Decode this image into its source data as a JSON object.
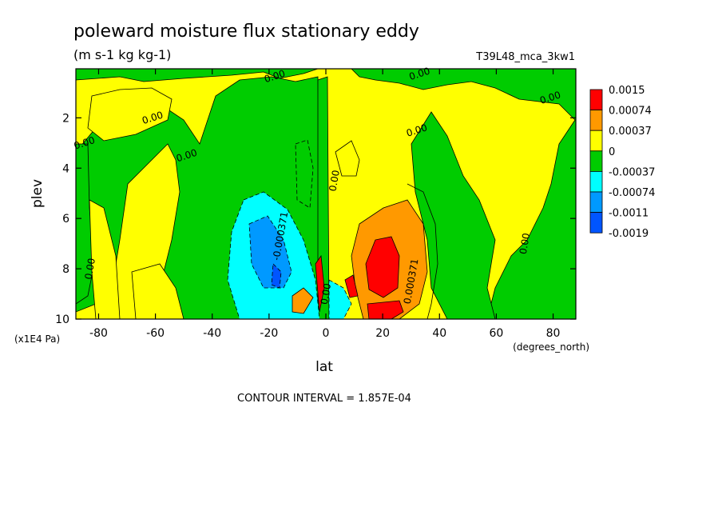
{
  "chart_data": {
    "type": "heatmap",
    "title": "poleward moisture flux stationary eddy",
    "units": "(m s-1 kg kg-1)",
    "run_label": "T39L48_mca_3kw1",
    "xlabel": "lat",
    "xunits": "(degrees_north)",
    "ylabel": "plev",
    "yunits": "(x1E4 Pa)",
    "xlim": [
      -88,
      88
    ],
    "ylim": [
      10,
      0.05
    ],
    "x_ticks": [
      -80,
      -60,
      -40,
      -20,
      0,
      20,
      40,
      60,
      80
    ],
    "x_tick_labels": [
      "-80",
      "-60",
      "-40",
      "-20",
      "0",
      "20",
      "40",
      "60",
      "80"
    ],
    "y_ticks": [
      2,
      4,
      6,
      8,
      10
    ],
    "y_tick_labels": [
      "2",
      "4",
      "6",
      "8",
      "10"
    ],
    "contour_interval": "CONTOUR INTERVAL = 1.857E-04",
    "colorbar": {
      "labels": [
        "0.0015",
        "0.00074",
        "0.00037",
        "0",
        "-0.00037",
        "-0.00074",
        "-0.0011",
        "-0.0019"
      ],
      "colors": [
        "#ff0000",
        "#ff9900",
        "#ffff00",
        "#00cc00",
        "#00ffff",
        "#0099ff",
        "#0055ff"
      ]
    },
    "contour_labels": [
      {
        "text": "0.00",
        "x": -85,
        "y": 3.0
      },
      {
        "text": "0.00",
        "x": -61,
        "y": 2.0
      },
      {
        "text": "0.00",
        "x": -49,
        "y": 3.5
      },
      {
        "text": "0.00",
        "x": -18,
        "y": 0.35
      },
      {
        "text": "0.00",
        "x": 3,
        "y": 4.5
      },
      {
        "text": "0.00",
        "x": 32,
        "y": 2.5
      },
      {
        "text": "0.00",
        "x": 33,
        "y": 0.25
      },
      {
        "text": "0.00",
        "x": 79,
        "y": 1.2
      },
      {
        "text": "0.00",
        "x": 70,
        "y": 7.0
      },
      {
        "text": "0.00",
        "x": -83,
        "y": 8.0
      },
      {
        "text": "-0.000371",
        "x": -16,
        "y": 6.7
      },
      {
        "text": "0.000371",
        "x": 30,
        "y": 8.5
      },
      {
        "text": "0.00",
        "x": 0,
        "y": 9.0
      }
    ],
    "fields": {
      "background_value": -0.0002,
      "features": [
        {
          "sign": "+",
          "x": 22,
          "y": 8.0,
          "peak": 0.0015
        },
        {
          "sign": "+",
          "x": 14,
          "y": 9.3,
          "peak": 0.0009
        },
        {
          "sign": "-",
          "x": -22,
          "y": 7.5,
          "peak": -0.0011
        },
        {
          "sign": "-",
          "x": -6,
          "y": 9.3,
          "peak": -0.0008
        },
        {
          "sign": "+",
          "x": -12,
          "y": 9.3,
          "peak": 0.0008
        },
        {
          "sign": "+",
          "x": -3,
          "y": 8.8,
          "peak": 0.0006
        }
      ]
    }
  }
}
